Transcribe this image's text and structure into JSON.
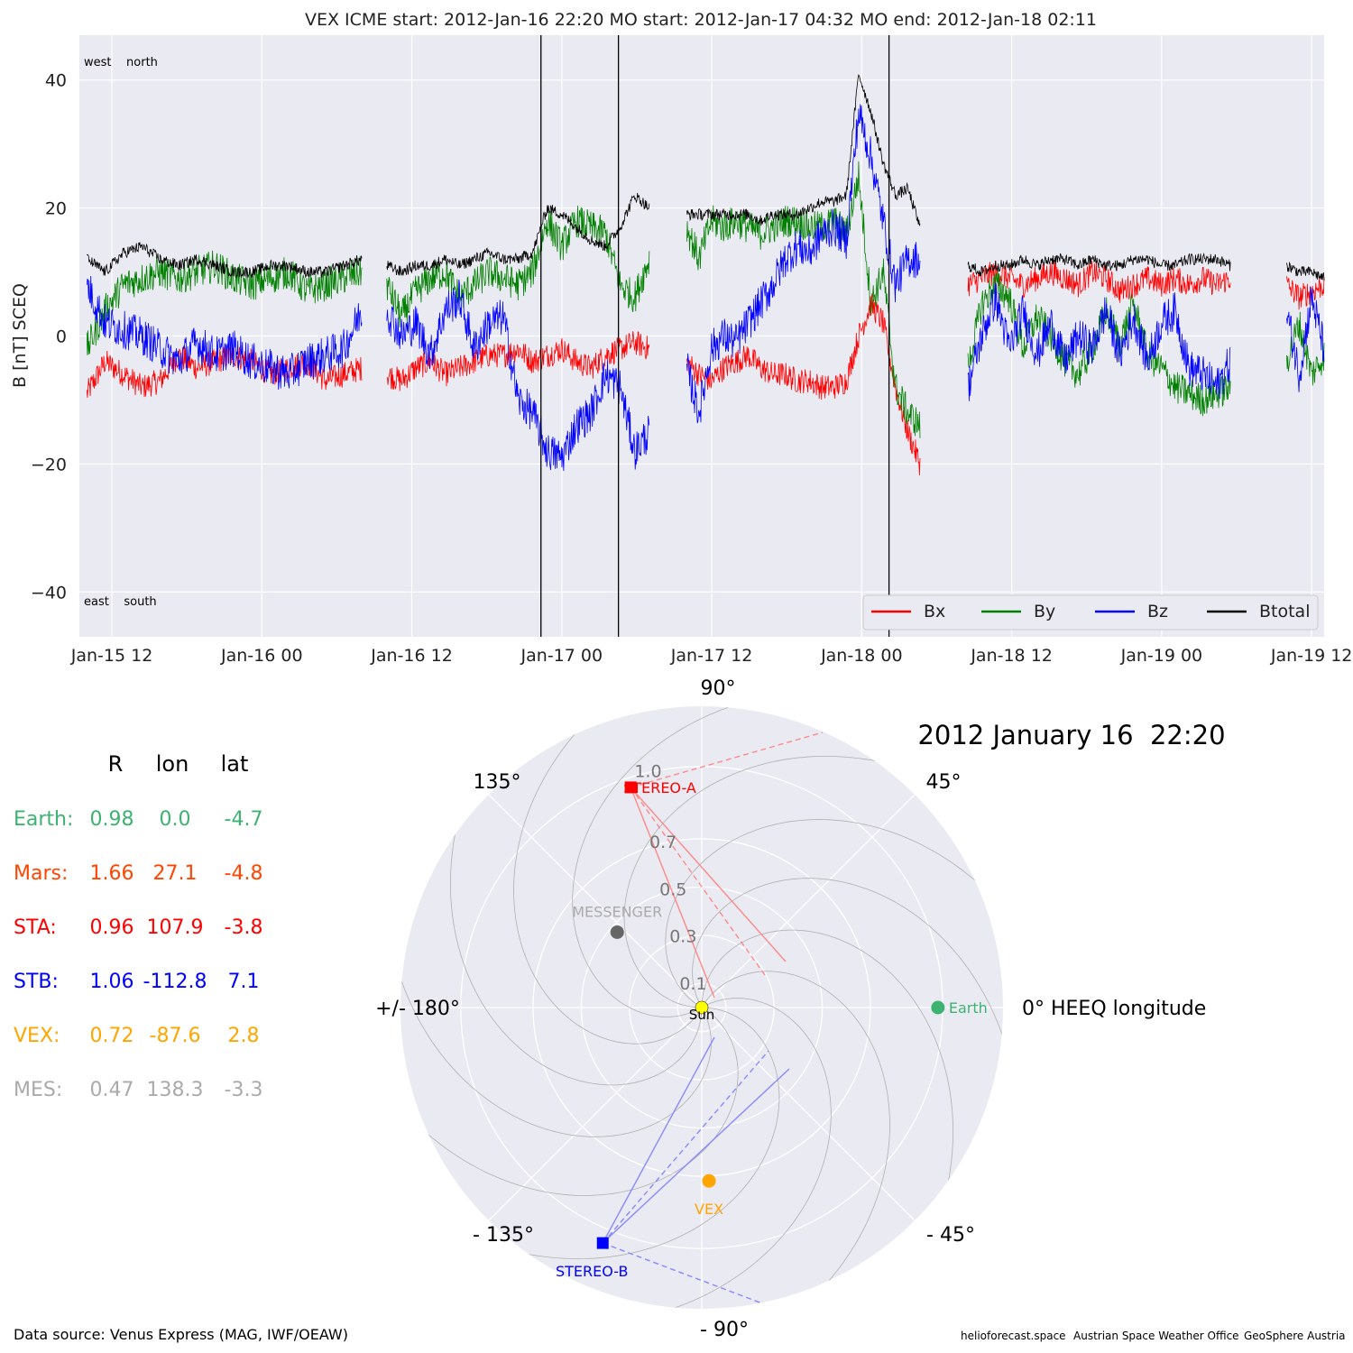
{
  "chart_data": [
    {
      "type": "line",
      "title": "VEX    ICME start: 2012-Jan-16 22:20   MO start: 2012-Jan-17 04:32   MO end: 2012-Jan-18 02:11",
      "ylabel": "B [nT] SCEQ",
      "ylim": [
        -47,
        47
      ],
      "yticks": [
        -40,
        -20,
        0,
        20,
        40
      ],
      "ytick_labels": [
        "−40",
        "−20",
        "0",
        "20",
        "40"
      ],
      "xlim": [
        "2012-01-15T09:24",
        "2012-01-19T13:00"
      ],
      "xticks": [
        "2012-01-15T12:00",
        "2012-01-16T00:00",
        "2012-01-16T12:00",
        "2012-01-17T00:00",
        "2012-01-17T12:00",
        "2012-01-18T00:00",
        "2012-01-18T12:00",
        "2012-01-19T00:00",
        "2012-01-19T12:00"
      ],
      "xtick_labels": [
        "Jan-15 12",
        "Jan-16 00",
        "Jan-16 12",
        "Jan-17 00",
        "Jan-17 12",
        "Jan-18 00",
        "Jan-18 12",
        "Jan-19 00",
        "Jan-19 12"
      ],
      "corner_labels": {
        "top": "west    north",
        "bottom": "east    south"
      },
      "event_lines": [
        "2012-01-16T22:20",
        "2012-01-17T04:32",
        "2012-01-18T02:11"
      ],
      "grid": true,
      "legend": "bottom-right",
      "series": [
        {
          "name": "Bx",
          "color": "#ff0000"
        },
        {
          "name": "By",
          "color": "#008000"
        },
        {
          "name": "Bz",
          "color": "#0000ff"
        },
        {
          "name": "Btotal",
          "color": "#000000"
        }
      ],
      "data_blocks": [
        {
          "start": "2012-01-15T10:00",
          "end": "2012-01-16T08:00",
          "Bx": [
            -9,
            -4,
            -6,
            -8,
            -7,
            -3,
            -5,
            -4,
            -3,
            -4,
            -6,
            -5,
            -4,
            -7,
            -6,
            -5
          ],
          "By": [
            -2,
            4,
            8,
            9,
            10,
            9,
            10,
            11,
            9,
            8,
            9,
            10,
            7,
            8,
            9,
            10
          ],
          "Bz": [
            8,
            2,
            1,
            0,
            -2,
            -4,
            -1,
            -3,
            -2,
            -4,
            -5,
            -6,
            -4,
            -3,
            -2,
            4
          ],
          "Btotal": [
            12,
            10,
            13,
            14,
            12,
            11,
            12,
            11,
            10,
            10,
            11,
            11,
            10,
            10,
            11,
            12
          ]
        },
        {
          "start": "2012-01-16T10:00",
          "end": "2012-01-17T07:00",
          "Bx": [
            -6,
            -7,
            -5,
            -4,
            -6,
            -5,
            -4,
            -3,
            -3,
            -2,
            -4,
            -3,
            -2,
            -4,
            -5,
            -3,
            -2,
            -1,
            -2
          ],
          "By": [
            8,
            3,
            7,
            9,
            10,
            6,
            8,
            10,
            9,
            8,
            10,
            18,
            14,
            18,
            17,
            16,
            8,
            6,
            12
          ],
          "Bz": [
            4,
            0,
            2,
            -3,
            4,
            6,
            -2,
            2,
            3,
            -10,
            -12,
            -18,
            -19,
            -14,
            -12,
            -6,
            -8,
            -18,
            -15
          ],
          "Btotal": [
            11,
            10,
            11,
            11,
            12,
            11,
            12,
            13,
            12,
            12,
            13,
            20,
            19,
            17,
            15,
            14,
            17,
            22,
            20
          ]
        },
        {
          "start": "2012-01-17T10:00",
          "end": "2012-01-18T04:40",
          "Bx": [
            -4,
            -6,
            -7,
            -5,
            -4,
            -3,
            -5,
            -6,
            -6,
            -7,
            -7,
            -8,
            -8,
            -7,
            0,
            5,
            2,
            -8,
            -15,
            -20
          ],
          "By": [
            17,
            12,
            18,
            17,
            18,
            17,
            16,
            17,
            18,
            18,
            17,
            17,
            18,
            16,
            25,
            5,
            10,
            -8,
            -12,
            -14
          ],
          "Bz": [
            -5,
            -12,
            -2,
            0,
            -1,
            2,
            5,
            8,
            12,
            14,
            13,
            16,
            17,
            15,
            35,
            28,
            18,
            8,
            12,
            12
          ],
          "Btotal": [
            19,
            19,
            19,
            19,
            19,
            19,
            18,
            19,
            19,
            19,
            20,
            21,
            21,
            22,
            41,
            35,
            27,
            22,
            23,
            17
          ]
        },
        {
          "start": "2012-01-18T08:30",
          "end": "2012-01-19T05:30",
          "Bx": [
            8,
            9,
            10,
            9,
            8,
            9,
            10,
            9,
            8,
            10,
            9,
            7,
            8,
            9,
            8,
            9,
            8,
            9,
            8,
            9
          ],
          "By": [
            -5,
            5,
            8,
            6,
            -2,
            3,
            0,
            -4,
            -6,
            -2,
            4,
            -1,
            5,
            -3,
            -5,
            -8,
            -9,
            -10,
            -9,
            -8
          ],
          "Bz": [
            -8,
            0,
            6,
            -2,
            4,
            -3,
            2,
            -4,
            0,
            -2,
            4,
            -3,
            3,
            -4,
            2,
            4,
            -5,
            -6,
            -8,
            -4
          ],
          "Btotal": [
            11,
            10,
            11,
            11,
            12,
            11,
            12,
            12,
            11,
            12,
            11,
            11,
            12,
            12,
            11,
            11,
            12,
            12,
            12,
            11
          ]
        },
        {
          "start": "2012-01-19T10:00",
          "end": "2012-01-19T13:00",
          "Bx": [
            8,
            6,
            7,
            8
          ],
          "By": [
            -4,
            2,
            -6,
            -3
          ],
          "Bz": [
            4,
            -6,
            6,
            -2
          ],
          "Btotal": [
            11,
            10,
            10,
            9
          ]
        }
      ]
    },
    {
      "type": "scatter",
      "title": "2012 January 16  22:20",
      "angle_labels": [
        "90°",
        "45°",
        "0° HEEQ longitude",
        "- 45°",
        "- 90°",
        "- 135°",
        "+/- 180°",
        "135°"
      ],
      "radial_labels": [
        "0.1",
        "0.3",
        "0.5",
        "0.7",
        "1.0"
      ],
      "radial_values": [
        0.1,
        0.3,
        0.5,
        0.7,
        1.0
      ],
      "rmax": 1.25,
      "points": [
        {
          "label": "Sun",
          "r": 0.0,
          "lon": 0.0,
          "color": "#ffff00"
        },
        {
          "label": "Earth",
          "r": 0.98,
          "lon": 0.0,
          "color": "#3cb371"
        },
        {
          "label": "MESSENGER",
          "r": 0.47,
          "lon": 138.3,
          "color": "#666666"
        },
        {
          "label": "VEX",
          "r": 0.72,
          "lon": -87.6,
          "color": "#ffa500"
        },
        {
          "label": "STEREO-A",
          "r": 0.96,
          "lon": 107.9,
          "color": "#ff0000"
        },
        {
          "label": "STEREO-B",
          "r": 1.06,
          "lon": -112.8,
          "color": "#0000ff"
        }
      ]
    }
  ],
  "position_table": {
    "headers": [
      "R",
      "lon",
      "lat"
    ],
    "rows": [
      {
        "name": "Earth:",
        "r": "0.98",
        "lon": "0.0",
        "lat": "-4.7",
        "color": "#3cb371"
      },
      {
        "name": "Mars:",
        "r": "1.66",
        "lon": "27.1",
        "lat": "-4.8",
        "color": "#ff4500"
      },
      {
        "name": "STA:",
        "r": "0.96",
        "lon": "107.9",
        "lat": "-3.8",
        "color": "#ff0000"
      },
      {
        "name": "STB:",
        "r": "1.06",
        "lon": "-112.8",
        "lat": "7.1",
        "color": "#0000ff"
      },
      {
        "name": "VEX:",
        "r": "0.72",
        "lon": "-87.6",
        "lat": "2.8",
        "color": "#ffa500"
      },
      {
        "name": "MES:",
        "r": "0.47",
        "lon": "138.3",
        "lat": "-3.3",
        "color": "#aaaaaa"
      }
    ]
  },
  "footer": {
    "source": "Data source: Venus Express (MAG, IWF/OEAW)",
    "credits": [
      "helioforecast.space",
      "Austrian Space Weather Office",
      "GeoSphere Austria"
    ]
  }
}
